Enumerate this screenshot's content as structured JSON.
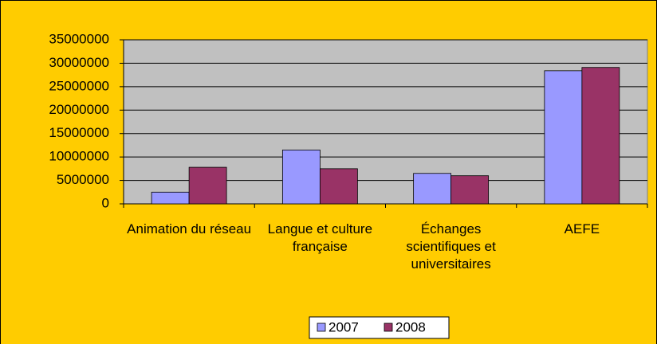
{
  "chart_data": {
    "type": "bar",
    "categories": [
      "Animation du réseau",
      "Langue et culture française",
      "Échanges scientifiques et universitaires",
      "AEFE"
    ],
    "series": [
      {
        "name": "2007",
        "color": "#9999ff",
        "values": [
          2500000,
          11500000,
          6500000,
          28400000
        ]
      },
      {
        "name": "2008",
        "color": "#993366",
        "values": [
          7800000,
          7500000,
          6000000,
          29100000
        ]
      }
    ],
    "ylim": [
      0,
      35000000
    ],
    "yticks": [
      0,
      5000000,
      10000000,
      15000000,
      20000000,
      25000000,
      30000000,
      35000000
    ],
    "grid": true,
    "legend": "bottom"
  }
}
